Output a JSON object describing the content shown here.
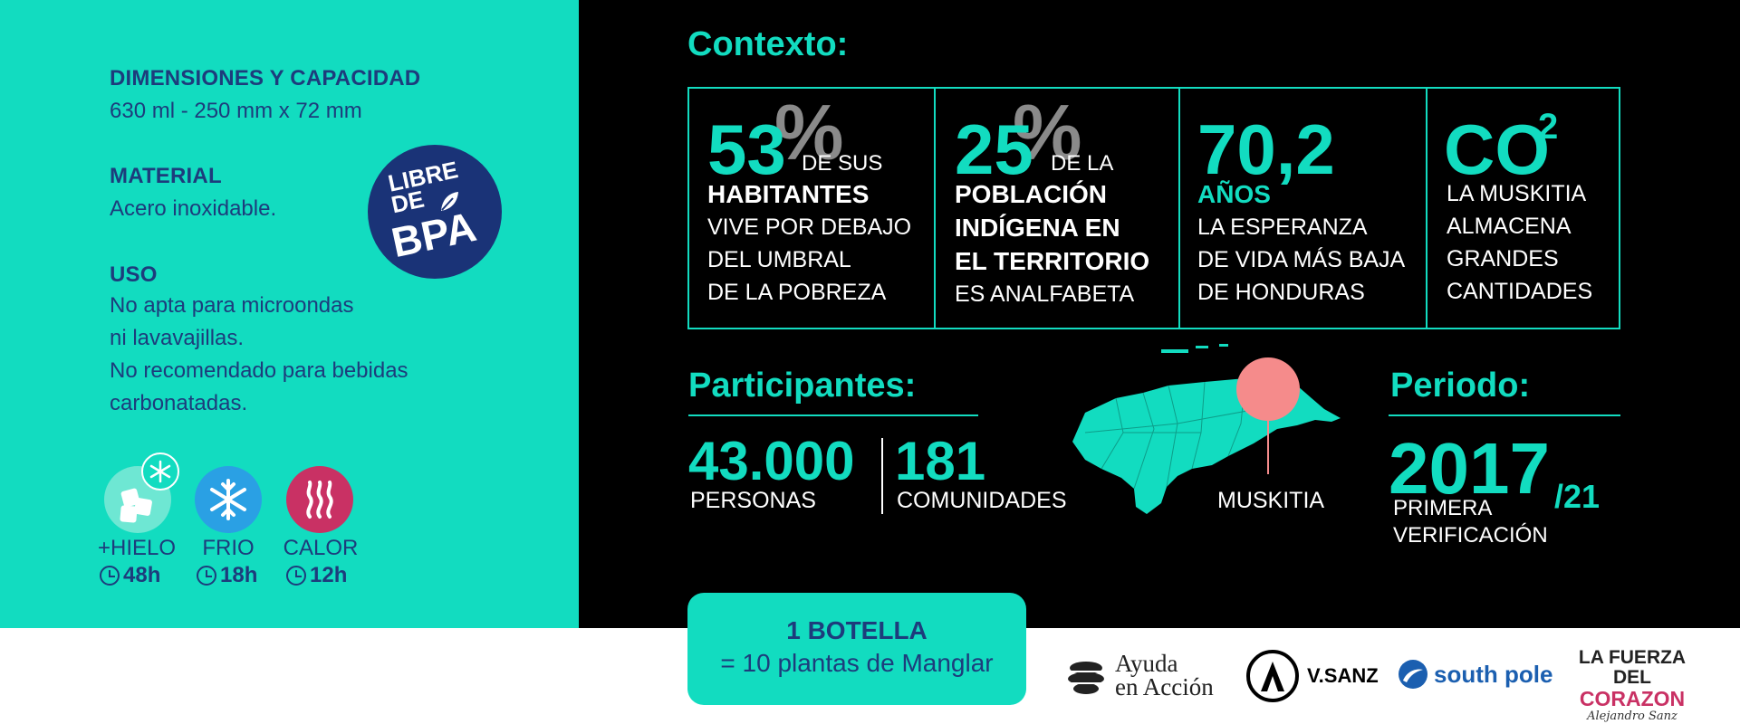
{
  "specs": {
    "dimensions_title": "DIMENSIONES Y CAPACIDAD",
    "dimensions_value": "630 ml - 250 mm x 72 mm",
    "material_title": "MATERIAL",
    "material_value": "Acero inoxidable.",
    "uso_title": "USO",
    "uso_lines": [
      "No apta para microondas",
      "ni lavavajillas.",
      "No recomendado para bebidas",
      "carbonatadas."
    ]
  },
  "badge": {
    "lines": [
      "LIBRE",
      "DE",
      "BPA"
    ]
  },
  "temperature": [
    {
      "label": "+HIELO",
      "time": "48h",
      "icon": "ice-icon"
    },
    {
      "label": "FRIO",
      "time": "18h",
      "icon": "snowflake-icon"
    },
    {
      "label": "CALOR",
      "time": "12h",
      "icon": "heat-icon"
    }
  ],
  "context": {
    "title": "Contexto:",
    "stats": [
      {
        "value": "53",
        "unit": "%",
        "suffix": "DE SUS",
        "strong": [
          "HABITANTES"
        ],
        "lines": [
          "VIVE POR DEBAJO",
          "DEL UMBRAL",
          "DE LA POBREZA"
        ]
      },
      {
        "value": "25",
        "unit": "%",
        "suffix": "DE LA",
        "strong": [
          "POBLACIÓN",
          "INDÍGENA EN",
          "EL TERRITORIO"
        ],
        "lines": [
          "ES ANALFABETA"
        ]
      },
      {
        "value": "70,2",
        "unit": "AÑOS",
        "lines": [
          "LA ESPERANZA",
          "DE VIDA MÁS BAJA",
          "DE HONDURAS"
        ]
      },
      {
        "value": "CO",
        "sup": "2",
        "lines": [
          "LA MUSKITIA",
          "ALMACENA",
          "GRANDES",
          "CANTIDADES"
        ]
      }
    ]
  },
  "participants": {
    "title": "Participantes:",
    "people_value": "43.000",
    "people_label": "PERSONAS",
    "communities_value": "181",
    "communities_label": "COMUNIDADES"
  },
  "map": {
    "label": "MUSKITIA",
    "colors": {
      "land": "#12dcc0",
      "marker": "#f58b8b"
    }
  },
  "period": {
    "title": "Periodo:",
    "year": "2017",
    "year_suffix": "/21",
    "lines": [
      "PRIMERA",
      "VERIFICACIÓN"
    ]
  },
  "botella": {
    "line1": "1 BOTELLA",
    "line2": "= 10 plantas de Manglar"
  },
  "logos": {
    "ayuda": [
      "Ayuda",
      "en Acción"
    ],
    "vsanz": "V.SANZ",
    "southpole": "south pole",
    "fuerza": [
      "LA FUERZA DEL",
      "CORAZON"
    ],
    "fuerza_signature": "Alejandro Sanz"
  },
  "colors": {
    "teal": "#12dcc0",
    "navy": "#1d3c7c",
    "black": "#000000"
  }
}
